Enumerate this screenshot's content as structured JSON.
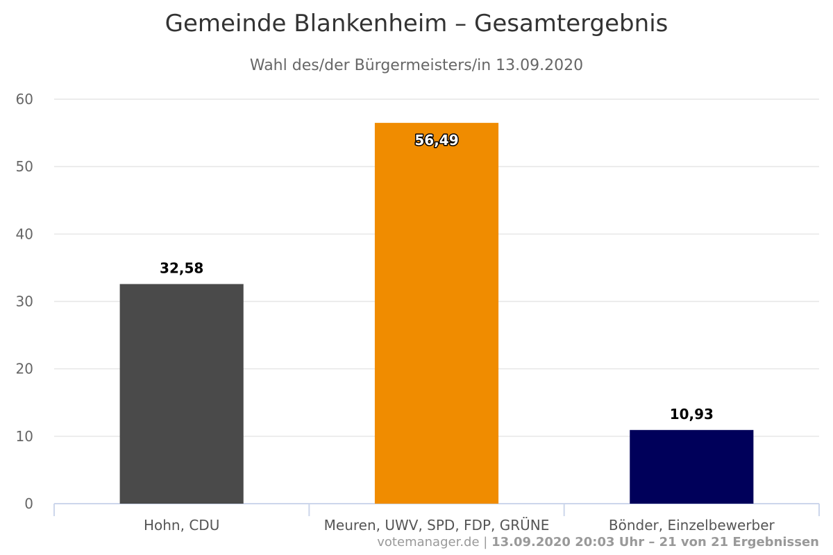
{
  "chart_data": {
    "type": "bar",
    "title": "Gemeinde Blankenheim – Gesamtergebnis",
    "subtitle": "Wahl des/der Bürgermeisters/in 13.09.2020",
    "categories": [
      "Hohn, CDU",
      "Meuren, UWV, SPD, FDP, GRÜNE",
      "Bönder, Einzelbewerber"
    ],
    "values": [
      32.58,
      56.49,
      10.93
    ],
    "value_labels": [
      "32,58",
      "56,49",
      "10,93"
    ],
    "colors": [
      "#4a4a4a",
      "#f08c00",
      "#00005a"
    ],
    "ylim": [
      0,
      60
    ],
    "yticks": [
      0,
      10,
      20,
      30,
      40,
      50,
      60
    ],
    "ytick_labels": [
      "0",
      "10",
      "20",
      "30",
      "40",
      "50",
      "60"
    ],
    "grid": true,
    "legend": false,
    "xlabel": "",
    "ylabel": ""
  },
  "credit": {
    "source": "votemanager.de",
    "separator": " | ",
    "detail": "13.09.2020 20:03 Uhr – 21 von 21 Ergebnissen"
  }
}
